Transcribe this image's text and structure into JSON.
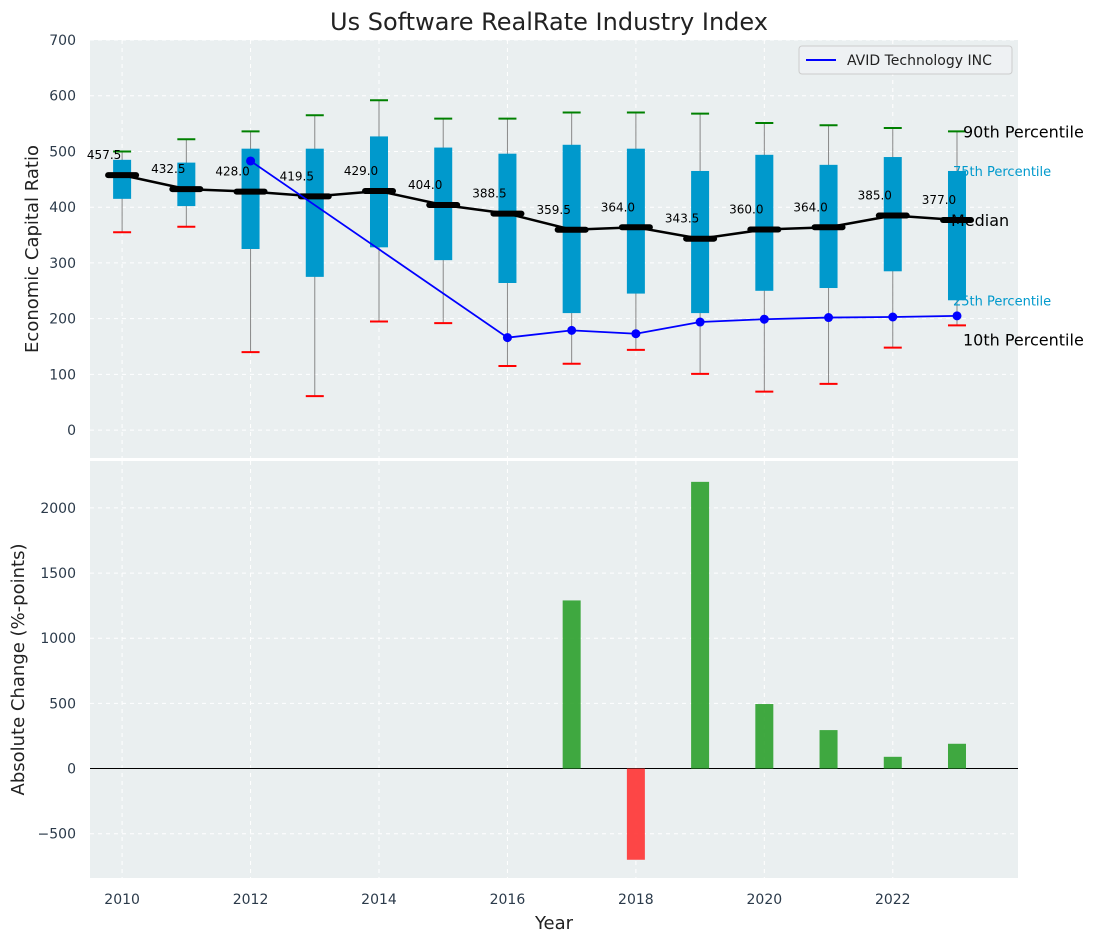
{
  "title": "Us Software RealRate Industry Index",
  "chart_data": [
    {
      "type": "box",
      "panel": "top",
      "ylabel": "Economic Capital Ratio",
      "ylim": [
        -50,
        700
      ],
      "yticks": [
        0,
        100,
        200,
        300,
        400,
        500,
        600,
        700
      ],
      "x": [
        2010,
        2011,
        2012,
        2013,
        2014,
        2015,
        2016,
        2017,
        2018,
        2019,
        2020,
        2021,
        2022,
        2023
      ],
      "p90": [
        500,
        522,
        536,
        565,
        592,
        559,
        559,
        570,
        570,
        568,
        551,
        547,
        542,
        536
      ],
      "q75": [
        485,
        480,
        505,
        505,
        527,
        507,
        496,
        512,
        505,
        465,
        494,
        476,
        490,
        465
      ],
      "median": [
        457.5,
        432.5,
        428.0,
        419.5,
        429.0,
        404.0,
        388.5,
        359.5,
        364.0,
        343.5,
        360.0,
        364.0,
        385.0,
        377.0
      ],
      "median_labels": [
        "457.5",
        "432.5",
        "428.0",
        "419.5",
        "429.0",
        "404.0",
        "388.5",
        "359.5",
        "364.0",
        "343.5",
        "360.0",
        "364.0",
        "385.0",
        "377.0"
      ],
      "q25": [
        415,
        402,
        325,
        275,
        328,
        305,
        264,
        210,
        245,
        210,
        250,
        255,
        285,
        233
      ],
      "p10": [
        355,
        365,
        140,
        61,
        195,
        192,
        115,
        119,
        144,
        101,
        69,
        83,
        148,
        188
      ],
      "series": [
        {
          "name": "AVID Technology INC",
          "x": [
            2012,
            2016,
            2017,
            2018,
            2019,
            2020,
            2021,
            2022,
            2023
          ],
          "values": [
            483,
            166,
            179,
            173,
            194,
            199,
            202,
            203,
            205
          ],
          "color": "#0000ff"
        }
      ],
      "annotations": {
        "p90": "90th Percentile",
        "p75": "75th Percentile",
        "median": "Median",
        "p25": "25th Percentile",
        "p10": "10th Percentile"
      },
      "legend_position": "top-right",
      "grid": true
    },
    {
      "type": "bar",
      "panel": "bottom",
      "xlabel": "Year",
      "ylabel": "Absolute Change (%-points)",
      "ylim": [
        -840,
        2360
      ],
      "yticks": [
        -500,
        0,
        500,
        1000,
        1500,
        2000
      ],
      "ytick_labels": [
        "−500",
        "0",
        "500",
        "1000",
        "1500",
        "2000"
      ],
      "x": [
        2017,
        2018,
        2019,
        2020,
        2021,
        2022,
        2023
      ],
      "values": [
        1290,
        -700,
        2200,
        495,
        295,
        90,
        190
      ],
      "xticks": [
        2010,
        2012,
        2014,
        2016,
        2018,
        2020,
        2022
      ],
      "positive_color": "#2ca02c",
      "negative_color": "#ff3333",
      "grid": true
    }
  ],
  "colors": {
    "panel_bg": "#eaeff0",
    "box_fill": "#0099cc",
    "p90_cap": "#008000",
    "p10_cap": "#ff0000",
    "median_line": "#000000"
  }
}
